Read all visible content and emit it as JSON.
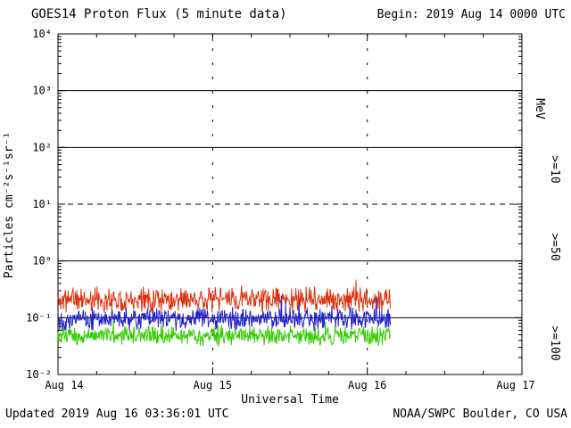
{
  "header": {
    "title": "GOES14 Proton Flux (5 minute data)",
    "begin": "Begin: 2019 Aug 14 0000 UTC"
  },
  "footer": {
    "updated": "Updated 2019 Aug 16 03:36:01 UTC",
    "credit": "NOAA/SWPC Boulder, CO USA"
  },
  "chart_data": {
    "type": "line",
    "title": "GOES14 Proton Flux (5 minute data)",
    "xlabel": "Universal Time",
    "ylabel": "Particles cm⁻²s⁻¹sr⁻¹",
    "right_axis_label": "MeV",
    "x_tick_labels": [
      "Aug 14",
      "Aug 15",
      "Aug 16",
      "Aug 17"
    ],
    "x_start": "2019 Aug 14 0000 UTC",
    "x_range_hours": [
      0,
      72
    ],
    "data_end_hour": 51.6,
    "data_end_label": "2019 Aug 16 03:36 UTC",
    "sample_minutes": 5,
    "y_scale": "log10",
    "ylog_range": [
      -2,
      4
    ],
    "y_tick_labels": [
      "10⁴",
      "10³",
      "10²",
      "10¹",
      "10⁰",
      "10⁻¹",
      "10⁻²"
    ],
    "grid": {
      "solid_decades": [
        3,
        2,
        0,
        -1
      ],
      "dashed_decades": [
        1
      ],
      "vline_hours": [
        24,
        48
      ]
    },
    "legend_position": "right",
    "series": [
      {
        "id": "ge10",
        "name": ">=10",
        "unit": "MeV",
        "color": "#dd3311",
        "typical": 0.21,
        "min": 0.1,
        "max": 0.45,
        "log_amp": 0.18,
        "seed": 11
      },
      {
        "id": "ge50",
        "name": ">=50",
        "unit": "MeV",
        "color": "#2222cc",
        "typical": 0.095,
        "min": 0.05,
        "max": 0.24,
        "log_amp": 0.16,
        "seed": 22
      },
      {
        "id": "ge100",
        "name": ">=100",
        "unit": "MeV",
        "color": "#33cc00",
        "typical": 0.048,
        "min": 0.03,
        "max": 0.1,
        "log_amp": 0.14,
        "seed": 33
      }
    ]
  }
}
